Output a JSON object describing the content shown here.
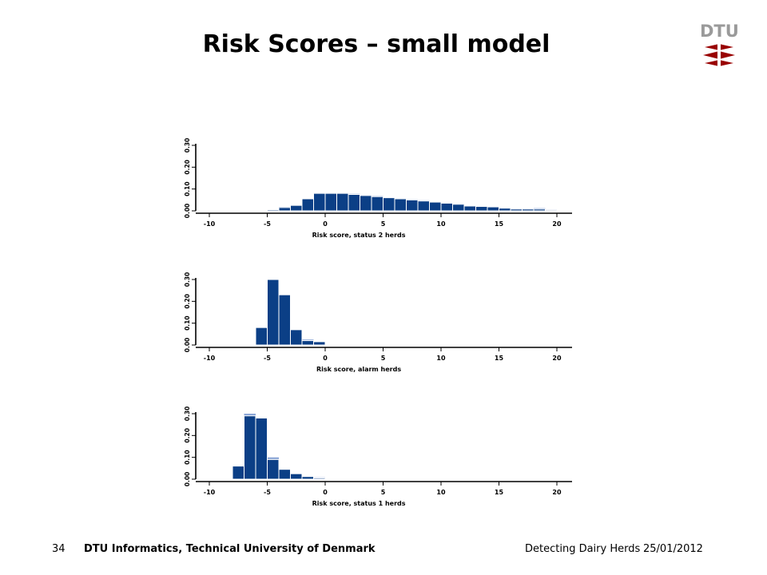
{
  "slide": {
    "title": "Risk Scores – small model",
    "page_number": "34",
    "organization": "DTU Informatics, Technical University of Denmark",
    "presentation": "Detecting Dairy Herds",
    "date": "25/01/2012",
    "logo_text": "DTU",
    "logo_color": "#990000"
  },
  "colors": {
    "bar": "#0b3f86",
    "bar_outline": "#ffffff",
    "overlay": "#8ba6d6"
  },
  "chart_data": [
    {
      "type": "bar",
      "xlabel": "Risk score, status 2 herds",
      "ylabel": "",
      "xticks": [
        "-10",
        "-5",
        "0",
        "5",
        "10",
        "15",
        "20"
      ],
      "yticks": [
        "0.00",
        "0.10",
        "0.20",
        "0.30"
      ],
      "xlim": [
        -11,
        21
      ],
      "ylim": [
        0,
        0.3
      ],
      "bin_width": 1,
      "bin_starts": [
        -5,
        -4,
        -3,
        -2,
        -1,
        0,
        1,
        2,
        3,
        4,
        5,
        6,
        7,
        8,
        9,
        10,
        11,
        12,
        13,
        14,
        15,
        16,
        17,
        18,
        19
      ],
      "values": [
        0.005,
        0.015,
        0.025,
        0.055,
        0.08,
        0.08,
        0.08,
        0.075,
        0.07,
        0.065,
        0.06,
        0.055,
        0.05,
        0.045,
        0.04,
        0.035,
        0.03,
        0.022,
        0.02,
        0.018,
        0.012,
        0.008,
        0.008,
        0.008,
        0.004
      ],
      "overlay_values": [
        0.004,
        0.018,
        0.025,
        0.055,
        0.082,
        0.082,
        0.082,
        0.078,
        0.072,
        0.068,
        0.062,
        0.057,
        0.052,
        0.048,
        0.042,
        0.036,
        0.032,
        0.024,
        0.021,
        0.019,
        0.014,
        0.01,
        0.01,
        0.012,
        0.006
      ]
    },
    {
      "type": "bar",
      "xlabel": "Risk score, alarm herds",
      "ylabel": "",
      "xticks": [
        "-10",
        "-5",
        "0",
        "5",
        "10",
        "15",
        "20"
      ],
      "yticks": [
        "0.00",
        "0.10",
        "0.20",
        "0.30"
      ],
      "xlim": [
        -11,
        21
      ],
      "ylim": [
        0,
        0.3
      ],
      "bin_width": 1,
      "bin_starts": [
        -6,
        -5,
        -4,
        -3,
        -2,
        -1
      ],
      "values": [
        0.08,
        0.3,
        0.23,
        0.07,
        0.02,
        0.015
      ],
      "overlay_values": [
        0.08,
        0.3,
        0.23,
        0.07,
        0.025,
        0.015
      ]
    },
    {
      "type": "bar",
      "xlabel": "Risk score, status 1 herds",
      "ylabel": "",
      "xticks": [
        "-10",
        "-5",
        "0",
        "5",
        "10",
        "15",
        "20"
      ],
      "yticks": [
        "0.00",
        "0.10",
        "0.20",
        "0.30"
      ],
      "xlim": [
        -11,
        21
      ],
      "ylim": [
        0,
        0.3
      ],
      "bin_width": 1,
      "bin_starts": [
        -8,
        -7,
        -6,
        -5,
        -4,
        -3,
        -2,
        -1
      ],
      "values": [
        0.06,
        0.29,
        0.28,
        0.09,
        0.045,
        0.025,
        0.012,
        0.005
      ],
      "overlay_values": [
        0.06,
        0.3,
        0.28,
        0.1,
        0.045,
        0.025,
        0.012,
        0.008
      ]
    }
  ]
}
